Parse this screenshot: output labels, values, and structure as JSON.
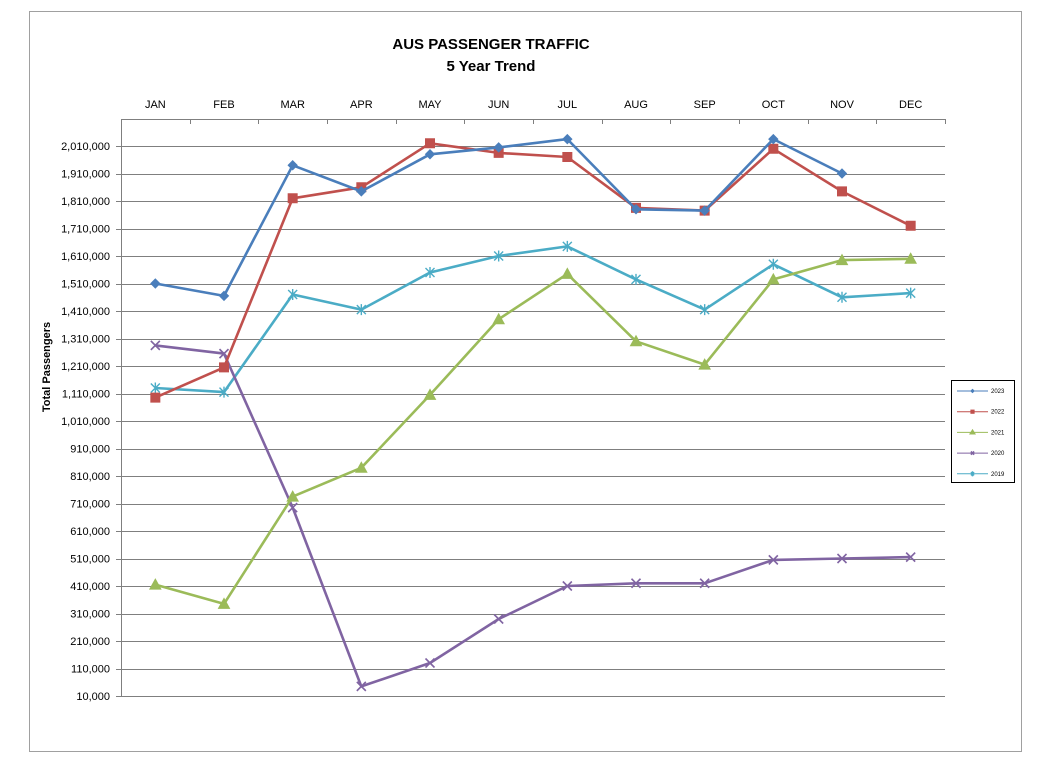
{
  "chart_data": {
    "type": "line",
    "title": "AUS PASSENGER TRAFFIC",
    "subtitle": "5 Year Trend",
    "xlabel": "",
    "ylabel": "Total Passengers",
    "categories": [
      "JAN",
      "FEB",
      "MAR",
      "APR",
      "MAY",
      "JUN",
      "JUL",
      "AUG",
      "SEP",
      "OCT",
      "NOV",
      "DEC"
    ],
    "x_axis_position": "top",
    "yticks": [
      "10,000",
      "110,000",
      "210,000",
      "310,000",
      "410,000",
      "510,000",
      "610,000",
      "710,000",
      "810,000",
      "910,000",
      "1,010,000",
      "1,110,000",
      "1,210,000",
      "1,310,000",
      "1,410,000",
      "1,510,000",
      "1,610,000",
      "1,710,000",
      "1,810,000",
      "1,910,000",
      "2,010,000"
    ],
    "ylim": [
      10000,
      2010000
    ],
    "grid": true,
    "legend_position": "right",
    "series": [
      {
        "name": "2023",
        "color": "#4a7ebb",
        "marker": "diamond",
        "values": [
          1510000,
          1465000,
          1940000,
          1845000,
          1980000,
          2005000,
          2035000,
          1780000,
          1775000,
          2035000,
          1910000,
          null
        ]
      },
      {
        "name": "2022",
        "color": "#c0504d",
        "marker": "square",
        "values": [
          1095000,
          1205000,
          1820000,
          1860000,
          2020000,
          1985000,
          1970000,
          1785000,
          1775000,
          2000000,
          1845000,
          1720000
        ]
      },
      {
        "name": "2021",
        "color": "#9bbb59",
        "marker": "triangle",
        "values": [
          415000,
          345000,
          735000,
          840000,
          1105000,
          1380000,
          1545000,
          1300000,
          1215000,
          1525000,
          1595000,
          1600000
        ]
      },
      {
        "name": "2020",
        "color": "#8064a2",
        "marker": "x",
        "values": [
          1285000,
          1255000,
          695000,
          45000,
          130000,
          290000,
          410000,
          420000,
          420000,
          505000,
          510000,
          515000
        ]
      },
      {
        "name": "2019",
        "color": "#4bacc6",
        "marker": "star",
        "values": [
          1130000,
          1115000,
          1470000,
          1415000,
          1550000,
          1610000,
          1645000,
          1525000,
          1415000,
          1580000,
          1460000,
          1475000
        ]
      }
    ]
  }
}
